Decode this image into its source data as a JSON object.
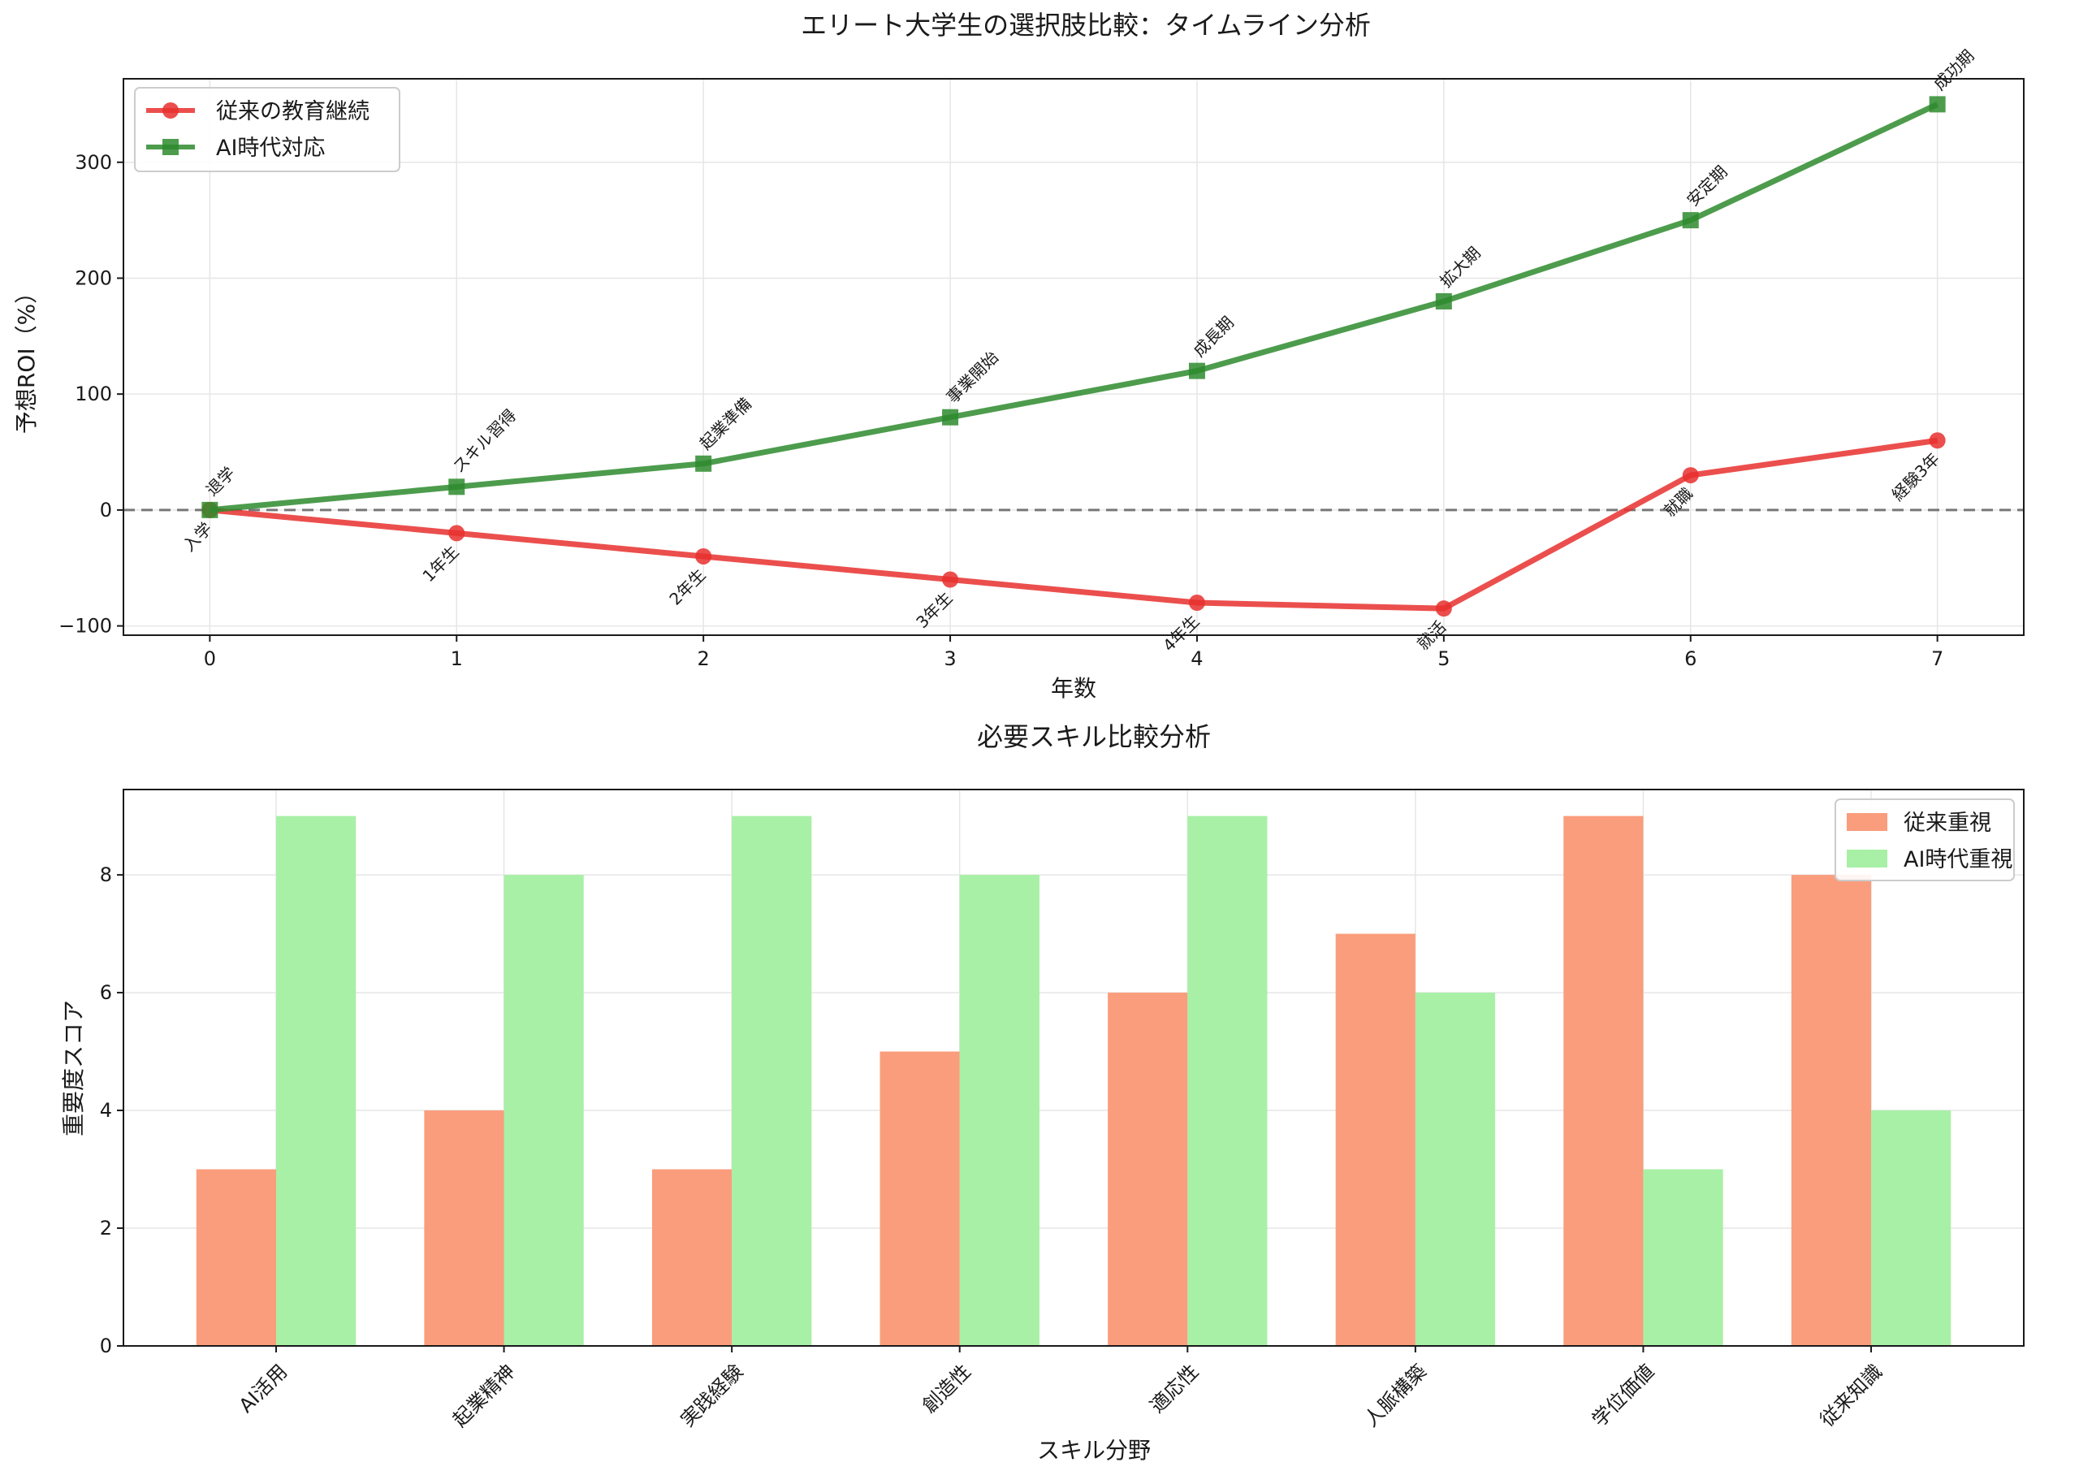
{
  "chart_data": [
    {
      "type": "line",
      "title": "エリート大学生の選択肢比較：タイムライン分析",
      "xlabel": "年数",
      "ylabel": "予想ROI（%）",
      "x": [
        0,
        1,
        2,
        3,
        4,
        5,
        6,
        7
      ],
      "xlim": [
        -0.35,
        7.35
      ],
      "ylim": [
        -108,
        372
      ],
      "xticks": [
        "0",
        "1",
        "2",
        "3",
        "4",
        "5",
        "6",
        "7"
      ],
      "yticks": [
        -100,
        0,
        100,
        200,
        300
      ],
      "ytick_labels": [
        "−100",
        "0",
        "100",
        "200",
        "300"
      ],
      "grid": true,
      "legend": "top-left",
      "reference_line": 0,
      "series": [
        {
          "name": "従来の教育継続",
          "color": "#e8302e",
          "marker": "circle",
          "values": [
            0,
            -20,
            -40,
            -60,
            -80,
            -85,
            30,
            60
          ],
          "annotations": [
            "入学",
            "1年生",
            "2年生",
            "3年生",
            "4年生",
            "就活",
            "就職",
            "経験3年"
          ]
        },
        {
          "name": "AI時代対応",
          "color": "#2e8b2e",
          "marker": "square",
          "values": [
            0,
            20,
            40,
            80,
            120,
            180,
            250,
            350
          ],
          "annotations": [
            "退学",
            "スキル習得",
            "起業準備",
            "事業開始",
            "成長期",
            "拡大期",
            "安定期",
            "成功期"
          ]
        }
      ]
    },
    {
      "type": "bar",
      "title": "必要スキル比較分析",
      "xlabel": "スキル分野",
      "ylabel": "重要度スコア",
      "categories": [
        "AI活用",
        "起業精神",
        "実践経験",
        "創造性",
        "適応性",
        "人脈構築",
        "学位価値",
        "従来知識"
      ],
      "ylim": [
        0,
        9.45
      ],
      "yticks": [
        0,
        2,
        4,
        6,
        8
      ],
      "grid": true,
      "legend": "top-right",
      "series": [
        {
          "name": "従来重視",
          "color": "#fa9d7c",
          "values": [
            3,
            4,
            3,
            5,
            6,
            7,
            9,
            8
          ]
        },
        {
          "name": "AI時代重視",
          "color": "#a8f0a6",
          "values": [
            9,
            8,
            9,
            8,
            9,
            6,
            3,
            4
          ]
        }
      ]
    }
  ]
}
